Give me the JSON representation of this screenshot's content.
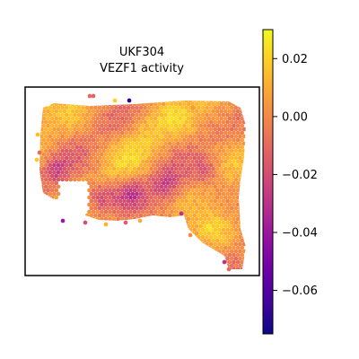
{
  "chart_data": {
    "type": "scatter",
    "title_line1": "UKF304",
    "title_line2": "VEZF1 activity",
    "colormap": "plasma",
    "colorbar": {
      "range": [
        -0.075,
        0.03
      ],
      "ticks": [
        {
          "value": 0.02,
          "label": "0.02"
        },
        {
          "value": 0.0,
          "label": "0.00"
        },
        {
          "value": -0.02,
          "label": "−0.02"
        },
        {
          "value": -0.04,
          "label": "−0.04"
        },
        {
          "value": -0.06,
          "label": "−0.06"
        }
      ]
    },
    "axes_visible": false,
    "grid": false
  }
}
